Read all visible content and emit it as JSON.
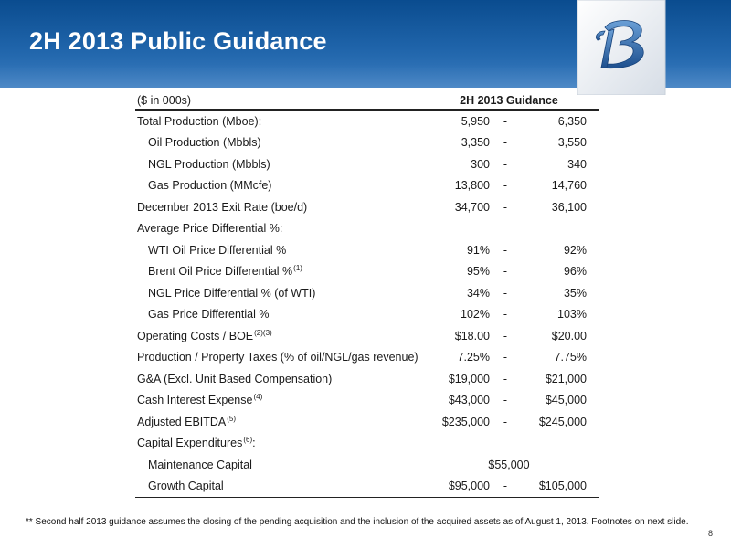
{
  "slide": {
    "title": "2H 2013 Public Guidance",
    "page_number": "8",
    "footnote": "** Second half 2013 guidance assumes the closing of the pending acquisition and the inclusion of the acquired assets as of August 1, 2013. Footnotes on next slide."
  },
  "logo": {
    "name": "company-monogram-logo"
  },
  "table": {
    "unit_label": "($ in 000s)",
    "column_header": "2H 2013 Guidance",
    "rows": [
      {
        "label": "Total Production (Mboe):",
        "sup": "",
        "low": "5,950",
        "sep": "-",
        "high": "6,350"
      },
      {
        "label": "Oil Production (Mbbls)",
        "sup": "",
        "low": "3,350",
        "sep": "-",
        "high": "3,550"
      },
      {
        "label": "NGL Production (Mbbls)",
        "sup": "",
        "low": "300",
        "sep": "-",
        "high": "340"
      },
      {
        "label": "Gas Production (MMcfe)",
        "sup": "",
        "low": "13,800",
        "sep": "-",
        "high": "14,760"
      },
      {
        "label": "December 2013 Exit Rate (boe/d)",
        "sup": "",
        "low": "34,700",
        "sep": "-",
        "high": "36,100"
      },
      {
        "label": "Average Price Differential %:",
        "sup": "",
        "low": "",
        "sep": "",
        "high": ""
      },
      {
        "label": "WTI Oil Price Differential %",
        "sup": "",
        "low": "91%",
        "sep": "-",
        "high": "92%"
      },
      {
        "label": "Brent Oil Price Differential %",
        "sup": "(1)",
        "low": "95%",
        "sep": "-",
        "high": "96%"
      },
      {
        "label": "NGL Price Differential % (of WTI)",
        "sup": "",
        "low": "34%",
        "sep": "-",
        "high": "35%"
      },
      {
        "label": "Gas Price Differential %",
        "sup": "",
        "low": "102%",
        "sep": "-",
        "high": "103%"
      },
      {
        "label": "Operating Costs / BOE",
        "sup": "(2)(3)",
        "low": "$18.00",
        "sep": "-",
        "high": "$20.00"
      },
      {
        "label": "Production / Property Taxes (% of oil/NGL/gas revenue)",
        "sup": "",
        "low": "7.25%",
        "sep": "-",
        "high": "7.75%"
      },
      {
        "label": "G&A (Excl. Unit Based Compensation)",
        "sup": "",
        "low": "$19,000",
        "sep": "-",
        "high": "$21,000"
      },
      {
        "label": "Cash Interest Expense",
        "sup": "(4)",
        "low": "$43,000",
        "sep": "-",
        "high": "$45,000"
      },
      {
        "label": "Adjusted EBITDA",
        "sup": "(5)",
        "low": "$235,000",
        "sep": "-",
        "high": "$245,000"
      },
      {
        "label": "Capital Expenditures",
        "sup": "(6)",
        "suffix": ":",
        "low": "",
        "sep": "",
        "high": ""
      },
      {
        "label": "Maintenance Capital",
        "sup": "",
        "single_value": "$55,000"
      },
      {
        "label": "Growth Capital",
        "sup": "",
        "low": "$95,000",
        "sep": "-",
        "high": "$105,000"
      }
    ]
  }
}
